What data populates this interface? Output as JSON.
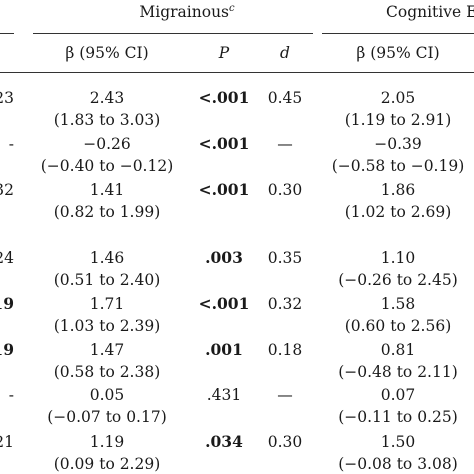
{
  "header": {
    "group1_title": "Migrainous",
    "group1_sup": "c",
    "group2_title": "Cognitive E",
    "col_beta": "β (95% CI)",
    "col_p": "P",
    "col_d": "d",
    "col_beta2": "β (95% CI)"
  },
  "rows": [
    {
      "left": "23",
      "left_bold": false,
      "beta": "2.43",
      "ci": "(1.83 to 3.03)",
      "p": "<.001",
      "p_bold": true,
      "d": "0.45",
      "beta2": "2.05",
      "ci2": "(1.19 to 2.91)"
    },
    {
      "left": "-",
      "left_bold": false,
      "beta": "−0.26",
      "ci": "(−0.40 to −0.12)",
      "p": "<.001",
      "p_bold": true,
      "d": "—",
      "beta2": "−0.39",
      "ci2": "(−0.58 to −0.19)"
    },
    {
      "left": "32",
      "left_bold": false,
      "beta": "1.41",
      "ci": "(0.82 to 1.99)",
      "p": "<.001",
      "p_bold": true,
      "d": "0.30",
      "beta2": "1.86",
      "ci2": "(1.02 to 2.69)"
    },
    {
      "left": "24",
      "left_bold": false,
      "beta": "1.46",
      "ci": "(0.51 to 2.40)",
      "p": ".003",
      "p_bold": true,
      "d": "0.35",
      "beta2": "1.10",
      "ci2": "(−0.26 to 2.45)"
    },
    {
      "left": "19",
      "left_bold": true,
      "beta": "1.71",
      "ci": "(1.03 to 2.39)",
      "p": "<.001",
      "p_bold": true,
      "d": "0.32",
      "beta2": "1.58",
      "ci2": "(0.60 to 2.56)"
    },
    {
      "left": "19",
      "left_bold": true,
      "beta": "1.47",
      "ci": "(0.58 to 2.38)",
      "p": ".001",
      "p_bold": true,
      "d": "0.18",
      "beta2": "0.81",
      "ci2": "(−0.48 to 2.11)"
    },
    {
      "left": "-",
      "left_bold": false,
      "beta": "0.05",
      "ci": "(−0.07 to 0.17)",
      "p": ".431",
      "p_bold": false,
      "d": "—",
      "beta2": "0.07",
      "ci2": "(−0.11 to 0.25)"
    },
    {
      "left": "21",
      "left_bold": false,
      "beta": "1.19",
      "ci": "(0.09 to 2.29)",
      "p": ".034",
      "p_bold": true,
      "d": "0.30",
      "beta2": "1.50",
      "ci2": "(−0.08 to 3.08)"
    }
  ]
}
